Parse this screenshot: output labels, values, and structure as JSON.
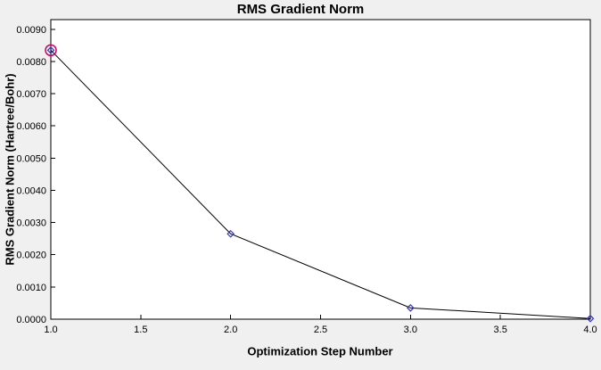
{
  "chart_data": {
    "type": "line",
    "title": "RMS Gradient Norm",
    "xlabel": "Optimization Step Number",
    "ylabel": "RMS Gradient Norm (Hartree/Bohr)",
    "x": [
      1.0,
      2.0,
      3.0,
      4.0
    ],
    "y": [
      0.00835,
      0.00265,
      0.00035,
      2e-05
    ],
    "highlighted_point_index": 0,
    "xlim": [
      1.0,
      4.0
    ],
    "ylim": [
      0.0,
      0.0093
    ],
    "xticks": [
      1.0,
      1.5,
      2.0,
      2.5,
      3.0,
      3.5,
      4.0
    ],
    "xtick_labels": [
      "1.0",
      "1.5",
      "2.0",
      "2.5",
      "3.0",
      "3.5",
      "4.0"
    ],
    "yticks": [
      0.0,
      0.001,
      0.002,
      0.003,
      0.004,
      0.005,
      0.006,
      0.007,
      0.008,
      0.009
    ],
    "ytick_labels": [
      "0.0000",
      "0.0010",
      "0.0020",
      "0.0030",
      "0.0040",
      "0.0050",
      "0.0060",
      "0.0070",
      "0.0080",
      "0.0090"
    ],
    "grid": false,
    "legend": "none",
    "line_color": "#000000",
    "marker_color": "#3333cc",
    "highlight_color": "#cc0066",
    "plot_bg": "#ffffff",
    "page_bg": "#f0f0f0",
    "axis_color": "#000000"
  }
}
